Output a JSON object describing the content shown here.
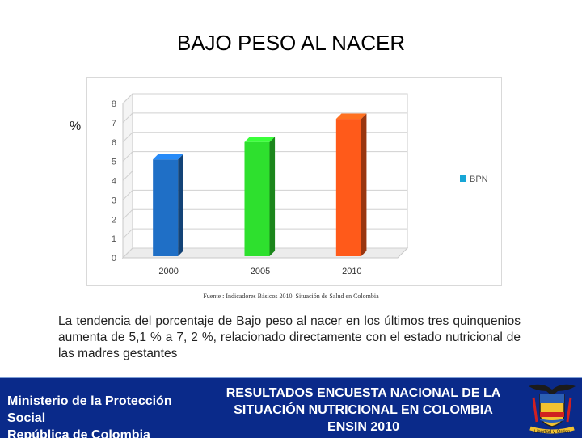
{
  "title": "BAJO PESO AL NACER",
  "y_unit": "%",
  "colors": {
    "bar_2000": "#1f6fc6",
    "bar_2005": "#2ee02e",
    "bar_2010": "#ff5a1a",
    "legend": "#17a6d6",
    "footer_bg": "#0a2a8a"
  },
  "chart_data": {
    "type": "bar",
    "categories": [
      "2000",
      "2005",
      "2010"
    ],
    "series": [
      {
        "name": "BPN",
        "values": [
          5.1,
          6.0,
          7.2
        ]
      }
    ],
    "yticks": [
      "0",
      "1",
      "2",
      "3",
      "4",
      "5",
      "6",
      "7",
      "8"
    ],
    "ylim": [
      0,
      8
    ],
    "legend": "right",
    "ylabel": "%"
  },
  "source": "Fuente : Indicadores Básicos 2010. Situación de Salud en Colombia",
  "body_text": "La tendencia del porcentaje de Bajo peso al nacer en los últimos tres quinquenios aumenta de 5,1 % a 7, 2 %, relacionado directamente con el estado nutricional de las madres gestantes",
  "footer": {
    "ministry_line1": "Ministerio de la Protección",
    "ministry_line2": "Social",
    "ministry_line3": "República de Colombia",
    "survey_line1": "RESULTADOS ENCUESTA NACIONAL DE LA",
    "survey_line2": "SITUACIÓN NUTRICIONAL EN COLOMBIA",
    "survey_line3": "ENSIN 2010",
    "crest_motto": "Libertad y Orden"
  }
}
